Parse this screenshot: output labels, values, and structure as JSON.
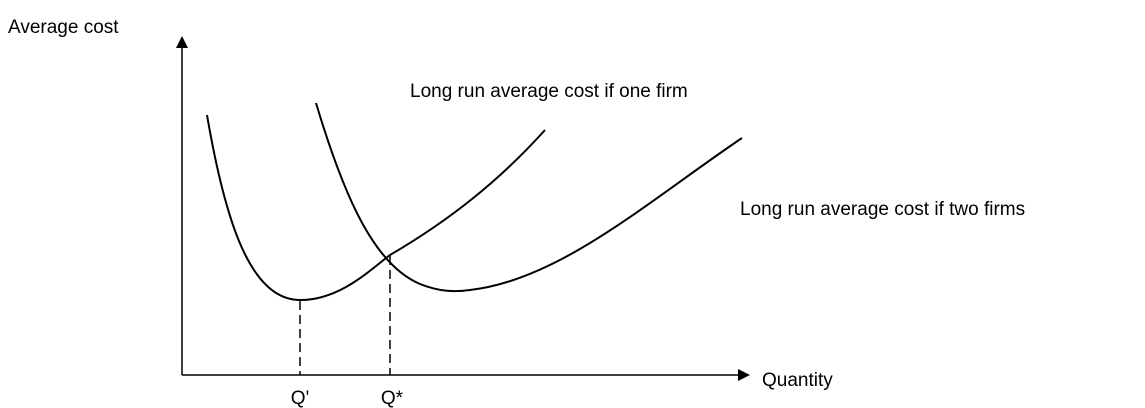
{
  "axes": {
    "y_label": "Average cost",
    "x_label": "Quantity"
  },
  "curves": {
    "one_firm": "Long run average cost if one firm",
    "two_firms": "Long run average cost if two firms"
  },
  "quantities": {
    "q_prime": "Q'",
    "q_star": "Q*"
  }
}
